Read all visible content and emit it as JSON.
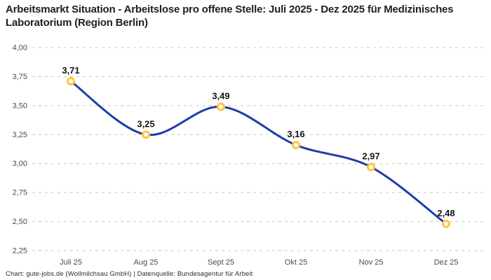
{
  "chart_data": {
    "type": "line",
    "title": "Arbeitsmarkt Situation - Arbeitslose pro offene Stelle: Juli 2025 - Dez 2025 für Medizinisches Laboratorium (Region Berlin)",
    "categories": [
      "Juli 25",
      "Aug 25",
      "Sept 25",
      "Okt 25",
      "Nov 25",
      "Dez 25"
    ],
    "values": [
      3.71,
      3.25,
      3.49,
      3.16,
      2.97,
      2.48
    ],
    "point_labels": [
      "3,71",
      "3,25",
      "3,49",
      "3,16",
      "2,97",
      "2,48"
    ],
    "y_tick_labels": [
      "4,00",
      "3,75",
      "3,50",
      "3,25",
      "3,00",
      "2,75",
      "2,50",
      "2,25"
    ],
    "y_tick_values": [
      4.0,
      3.75,
      3.5,
      3.25,
      3.0,
      2.75,
      2.5,
      2.25
    ],
    "ylim": [
      2.25,
      4.0
    ],
    "xlabel": "",
    "ylabel": "",
    "grid": "horizontal-dashed",
    "legend": "none",
    "colors": {
      "line": "#1f3da6",
      "marker_ring": "#ffc53d",
      "marker_fill": "#ffffff",
      "gridline": "#c7c7c7",
      "tick_text": "#4b4b4b",
      "label_text": "#141414",
      "title_text": "#1f1f1f",
      "background": "#ffffff"
    },
    "footer": "Chart: gute-jobs.de (Wollmilchsau GmbH) | Datenquelle: Bundesagentur für Arbeit"
  }
}
